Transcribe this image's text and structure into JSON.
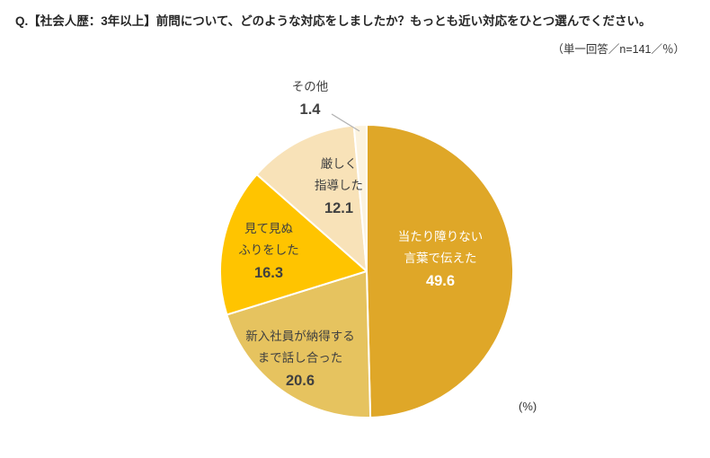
{
  "header": {
    "question": "Q.【社会人歴：3年以上】前問について、どのような対応をしましたか？もっとも近い対応をひとつ選んでください。",
    "note": "（単一回答／n=141／％）"
  },
  "chart_data": {
    "type": "pie",
    "n": 141,
    "unit_label": "(%)",
    "start_angle_deg": 0,
    "direction": "clockwise",
    "legend_position": "none",
    "slices": [
      {
        "label": "当たり障りない\n言葉で伝えた",
        "value": 49.6,
        "color": "#DFA728",
        "text_color": "#FFFFFF"
      },
      {
        "label": "新入社員が納得する\nまで話し合った",
        "value": 20.6,
        "color": "#E6C35F",
        "text_color": "#404040"
      },
      {
        "label": "見て見ぬ\nふりをした",
        "value": 16.3,
        "color": "#FFC400",
        "text_color": "#404040"
      },
      {
        "label": "厳しく\n指導した",
        "value": 12.1,
        "color": "#F8E2B8",
        "text_color": "#404040"
      },
      {
        "label": "その他",
        "value": 1.4,
        "color": "#FCF3DF",
        "text_color": "#404040"
      }
    ]
  }
}
